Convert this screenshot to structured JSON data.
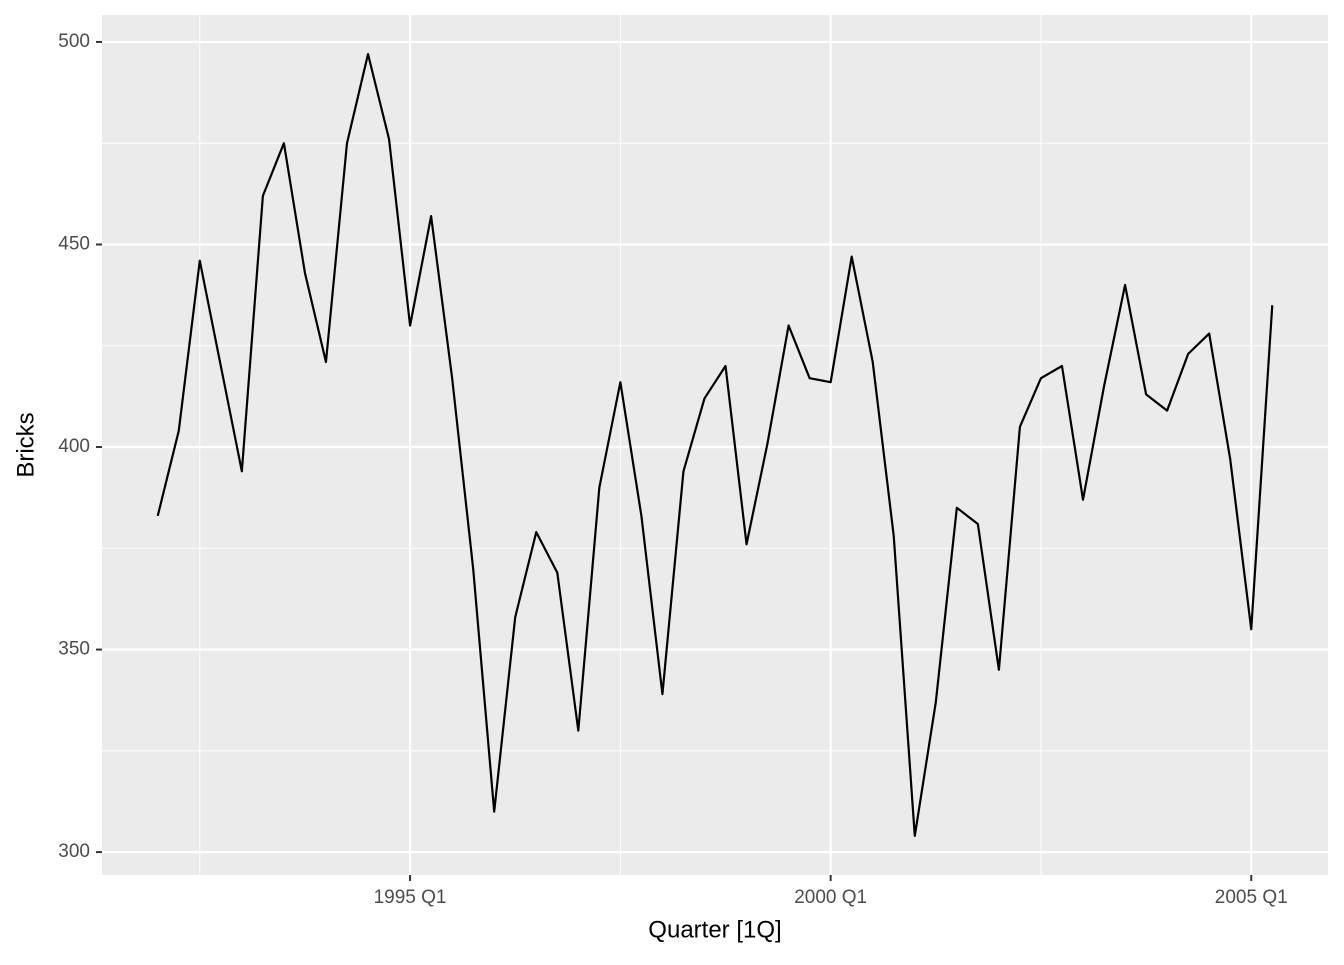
{
  "chart_data": {
    "type": "line",
    "x_label": "Quarter [1Q]",
    "y_label": "Bricks",
    "x": [
      "1992 Q1",
      "1992 Q2",
      "1992 Q3",
      "1992 Q4",
      "1993 Q1",
      "1993 Q2",
      "1993 Q3",
      "1993 Q4",
      "1994 Q1",
      "1994 Q2",
      "1994 Q3",
      "1994 Q4",
      "1995 Q1",
      "1995 Q2",
      "1995 Q3",
      "1995 Q4",
      "1996 Q1",
      "1996 Q2",
      "1996 Q3",
      "1996 Q4",
      "1997 Q1",
      "1997 Q2",
      "1997 Q3",
      "1997 Q4",
      "1998 Q1",
      "1998 Q2",
      "1998 Q3",
      "1998 Q4",
      "1999 Q1",
      "1999 Q2",
      "1999 Q3",
      "1999 Q4",
      "2000 Q1",
      "2000 Q2",
      "2000 Q3",
      "2000 Q4",
      "2001 Q1",
      "2001 Q2",
      "2001 Q3",
      "2001 Q4",
      "2002 Q1",
      "2002 Q2",
      "2002 Q3",
      "2002 Q4",
      "2003 Q1",
      "2003 Q2",
      "2003 Q3",
      "2003 Q4",
      "2004 Q1",
      "2004 Q2",
      "2004 Q3",
      "2004 Q4",
      "2005 Q1",
      "2005 Q2"
    ],
    "series": [
      {
        "name": "Bricks",
        "color": "#000000",
        "values": [
          383,
          404,
          446,
          420,
          394,
          462,
          475,
          443,
          421,
          475,
          497,
          476,
          430,
          457,
          417,
          370,
          310,
          358,
          379,
          369,
          330,
          390,
          416,
          383,
          339,
          394,
          412,
          420,
          376,
          401,
          430,
          417,
          416,
          447,
          421,
          378,
          304,
          337,
          385,
          381,
          345,
          405,
          417,
          420,
          387,
          415,
          440,
          413,
          409,
          423,
          428,
          397,
          355,
          435
        ]
      }
    ],
    "xticks": [
      "1995 Q1",
      "2000 Q1",
      "2005 Q1"
    ],
    "ylim": [
      294.35,
      506.65
    ],
    "yticks": [
      300,
      350,
      400,
      450,
      500
    ],
    "grid": true
  }
}
